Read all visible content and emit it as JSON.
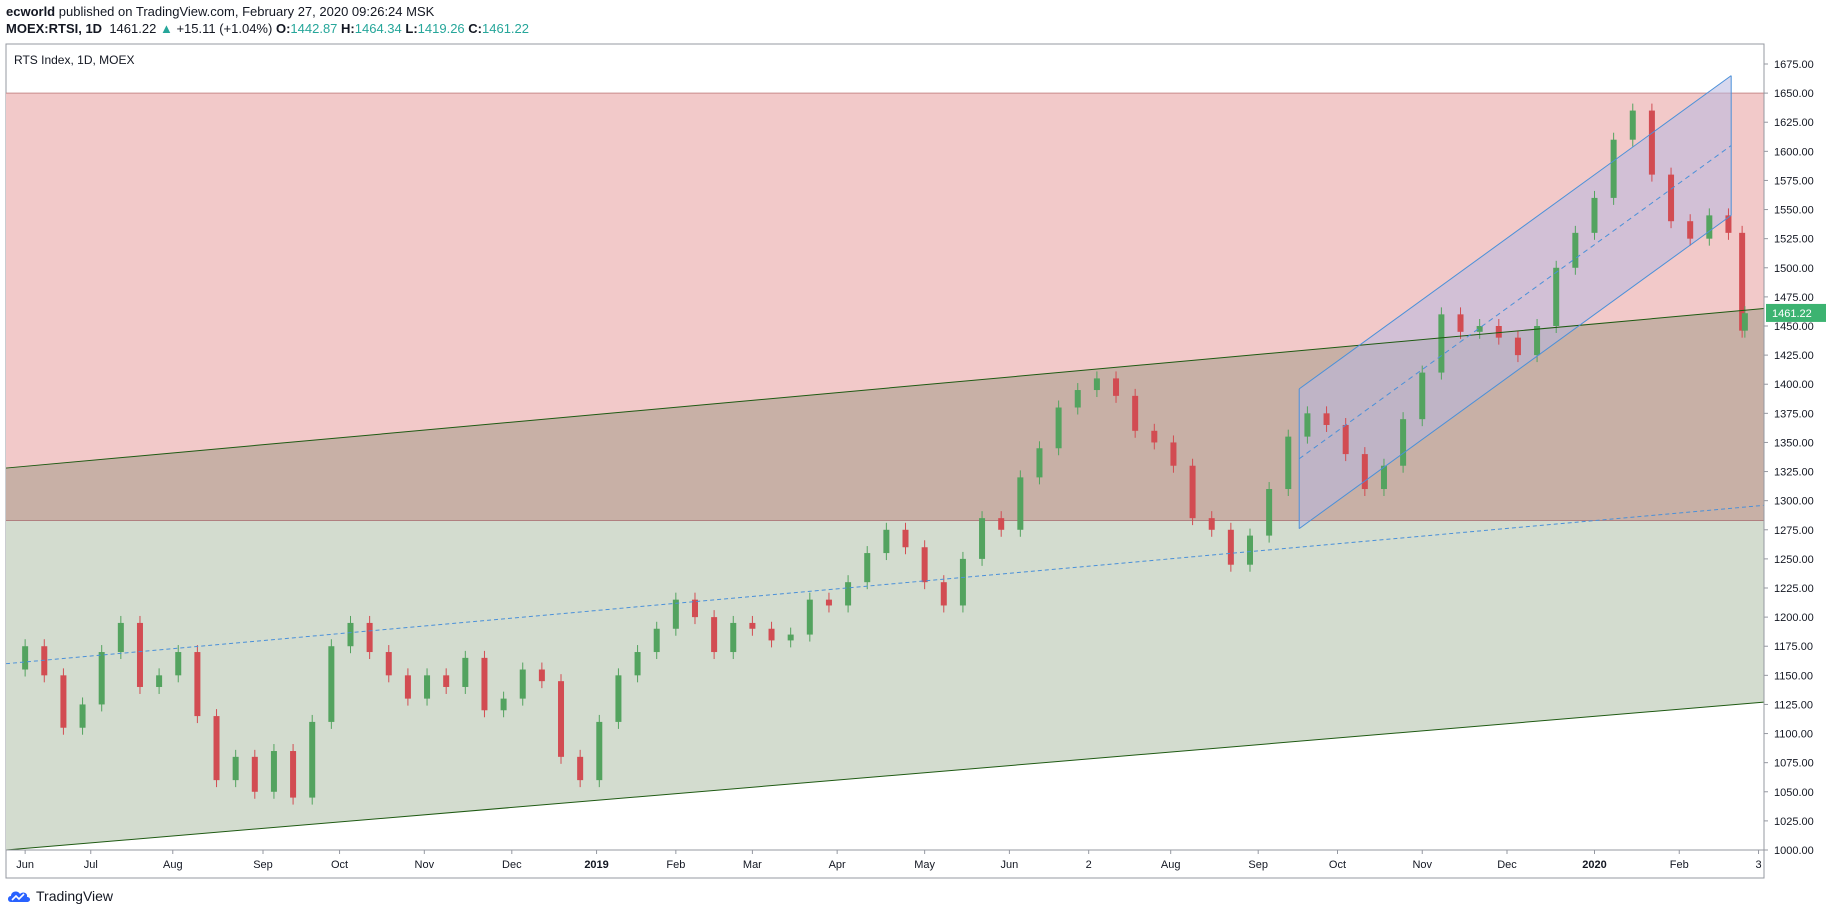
{
  "header": {
    "author": "ecworld",
    "published_text": "published on TradingView.com, February 27, 2020 09:26:24 MSK",
    "symbol": "MOEX:RTSI, 1D",
    "last": "1461.22",
    "change": "+15.11 (+1.04%)",
    "open_label": "O:",
    "open": "1442.87",
    "high_label": "H:",
    "high": "1464.34",
    "low_label": "L:",
    "low": "1419.26",
    "close_label": "C:",
    "close": "1461.22"
  },
  "footer": {
    "brand": "TradingView"
  },
  "colors": {
    "up": "#53a35f",
    "down": "#d24c52",
    "resistance_zone": "#f2c9c9",
    "support_zone": "#d3dccf",
    "overlap_zone": "#c8b0a6",
    "channel_fill": "#b8b8e0",
    "channel_line": "#4a90d9",
    "trend_line": "#1e5a12",
    "price_label_bg": "#3cb371"
  },
  "chart_data": {
    "type": "candlestick",
    "title": "RTS Index, 1D, MOEX",
    "x_labels": [
      "Jun",
      "Jul",
      "Aug",
      "Sep",
      "Oct",
      "Nov",
      "Dec",
      "2019",
      "Feb",
      "Mar",
      "Apr",
      "May",
      "Jun",
      "2",
      "Aug",
      "Sep",
      "Oct",
      "Nov",
      "Dec",
      "2020",
      "Feb",
      "3"
    ],
    "x_range": [
      "2018-06-01",
      "2020-03-05"
    ],
    "ylim": [
      1000,
      1675
    ],
    "y_ticks": [
      1000,
      1025,
      1050,
      1075,
      1100,
      1125,
      1150,
      1175,
      1200,
      1225,
      1250,
      1275,
      1300,
      1325,
      1350,
      1375,
      1400,
      1425,
      1450,
      1475,
      1500,
      1525,
      1550,
      1575,
      1600,
      1625,
      1650,
      1675
    ],
    "last_price_label": "1461.22",
    "last_price": 1461.22,
    "resistance_zone_top": 1650,
    "ascending_channel": {
      "lower": [
        [
          "2018-06-01",
          1000
        ],
        [
          "2020-03-05",
          1127
        ]
      ],
      "upper": [
        [
          "2018-06-01",
          1328
        ],
        [
          "2020-03-05",
          1465
        ]
      ],
      "middle_dashed": [
        [
          "2018-06-01",
          1160
        ],
        [
          "2020-03-05",
          1296
        ]
      ]
    },
    "zone_boundary": 1283,
    "rising_regression_channel": {
      "start": "2019-09-17",
      "end": "2020-02-22",
      "lower": [
        1276,
        1545
      ],
      "middle": [
        1336,
        1605
      ],
      "upper": [
        1396,
        1665
      ]
    },
    "closes": [
      [
        "2018-06-01",
        1155
      ],
      [
        "2018-06-08",
        1175
      ],
      [
        "2018-06-15",
        1150
      ],
      [
        "2018-06-22",
        1105
      ],
      [
        "2018-06-29",
        1125
      ],
      [
        "2018-07-06",
        1170
      ],
      [
        "2018-07-13",
        1195
      ],
      [
        "2018-07-20",
        1140
      ],
      [
        "2018-07-27",
        1150
      ],
      [
        "2018-08-03",
        1170
      ],
      [
        "2018-08-10",
        1115
      ],
      [
        "2018-08-17",
        1060
      ],
      [
        "2018-08-24",
        1080
      ],
      [
        "2018-08-31",
        1050
      ],
      [
        "2018-09-07",
        1085
      ],
      [
        "2018-09-14",
        1045
      ],
      [
        "2018-09-21",
        1110
      ],
      [
        "2018-09-28",
        1175
      ],
      [
        "2018-10-05",
        1195
      ],
      [
        "2018-10-12",
        1170
      ],
      [
        "2018-10-19",
        1150
      ],
      [
        "2018-10-26",
        1130
      ],
      [
        "2018-11-02",
        1150
      ],
      [
        "2018-11-09",
        1140
      ],
      [
        "2018-11-16",
        1165
      ],
      [
        "2018-11-23",
        1120
      ],
      [
        "2018-11-30",
        1130
      ],
      [
        "2018-12-07",
        1155
      ],
      [
        "2018-12-14",
        1145
      ],
      [
        "2018-12-21",
        1080
      ],
      [
        "2018-12-28",
        1060
      ],
      [
        "2019-01-04",
        1110
      ],
      [
        "2019-01-11",
        1150
      ],
      [
        "2019-01-18",
        1170
      ],
      [
        "2019-01-25",
        1190
      ],
      [
        "2019-02-01",
        1215
      ],
      [
        "2019-02-08",
        1200
      ],
      [
        "2019-02-15",
        1170
      ],
      [
        "2019-02-22",
        1195
      ],
      [
        "2019-03-01",
        1190
      ],
      [
        "2019-03-08",
        1180
      ],
      [
        "2019-03-15",
        1185
      ],
      [
        "2019-03-22",
        1215
      ],
      [
        "2019-03-29",
        1210
      ],
      [
        "2019-04-05",
        1230
      ],
      [
        "2019-04-12",
        1255
      ],
      [
        "2019-04-19",
        1275
      ],
      [
        "2019-04-26",
        1260
      ],
      [
        "2019-05-03",
        1230
      ],
      [
        "2019-05-10",
        1210
      ],
      [
        "2019-05-17",
        1250
      ],
      [
        "2019-05-24",
        1285
      ],
      [
        "2019-05-31",
        1275
      ],
      [
        "2019-06-07",
        1320
      ],
      [
        "2019-06-14",
        1345
      ],
      [
        "2019-06-21",
        1380
      ],
      [
        "2019-06-28",
        1395
      ],
      [
        "2019-07-05",
        1405
      ],
      [
        "2019-07-12",
        1390
      ],
      [
        "2019-07-19",
        1360
      ],
      [
        "2019-07-26",
        1350
      ],
      [
        "2019-08-02",
        1330
      ],
      [
        "2019-08-09",
        1285
      ],
      [
        "2019-08-16",
        1275
      ],
      [
        "2019-08-23",
        1245
      ],
      [
        "2019-08-30",
        1270
      ],
      [
        "2019-09-06",
        1310
      ],
      [
        "2019-09-13",
        1355
      ],
      [
        "2019-09-20",
        1375
      ],
      [
        "2019-09-27",
        1365
      ],
      [
        "2019-10-04",
        1340
      ],
      [
        "2019-10-11",
        1310
      ],
      [
        "2019-10-18",
        1330
      ],
      [
        "2019-10-25",
        1370
      ],
      [
        "2019-11-01",
        1410
      ],
      [
        "2019-11-08",
        1460
      ],
      [
        "2019-11-15",
        1445
      ],
      [
        "2019-11-22",
        1450
      ],
      [
        "2019-11-29",
        1440
      ],
      [
        "2019-12-06",
        1425
      ],
      [
        "2019-12-13",
        1450
      ],
      [
        "2019-12-20",
        1500
      ],
      [
        "2019-12-27",
        1530
      ],
      [
        "2020-01-03",
        1560
      ],
      [
        "2020-01-10",
        1610
      ],
      [
        "2020-01-17",
        1635
      ],
      [
        "2020-01-24",
        1580
      ],
      [
        "2020-01-31",
        1540
      ],
      [
        "2020-02-07",
        1525
      ],
      [
        "2020-02-14",
        1545
      ],
      [
        "2020-02-21",
        1530
      ],
      [
        "2020-02-26",
        1446
      ],
      [
        "2020-02-27",
        1461
      ]
    ]
  }
}
